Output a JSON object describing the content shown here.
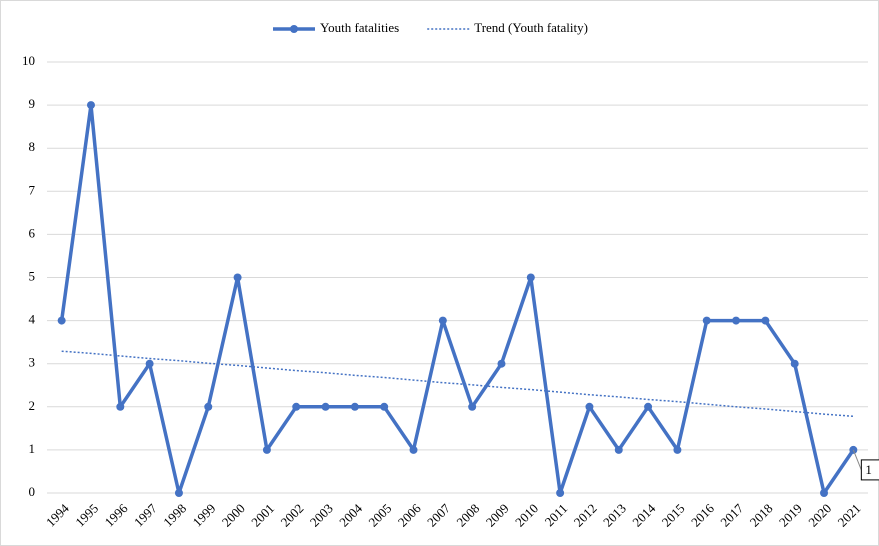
{
  "chart_data": {
    "type": "line",
    "categories": [
      "1994",
      "1995",
      "1996",
      "1997",
      "1998",
      "1999",
      "2000",
      "2001",
      "2002",
      "2003",
      "2004",
      "2005",
      "2006",
      "2007",
      "2008",
      "2009",
      "2010",
      "2011",
      "2012",
      "2013",
      "2014",
      "2015",
      "2016",
      "2017",
      "2018",
      "2019",
      "2020",
      "2021"
    ],
    "series": [
      {
        "name": "Youth fatalities",
        "color": "#4472c4",
        "style": "solid",
        "markers": true,
        "values": [
          4,
          9,
          2,
          3,
          0,
          2,
          5,
          1,
          2,
          2,
          2,
          2,
          1,
          4,
          2,
          3,
          5,
          0,
          2,
          1,
          2,
          1,
          4,
          4,
          4,
          3,
          0,
          1
        ]
      },
      {
        "name": "Trend (Youth fatality)",
        "color": "#4472c4",
        "style": "dotted",
        "markers": false,
        "values": [
          3.29,
          3.24,
          3.18,
          3.12,
          3.07,
          3.01,
          2.96,
          2.9,
          2.84,
          2.79,
          2.73,
          2.68,
          2.62,
          2.56,
          2.51,
          2.45,
          2.4,
          2.34,
          2.28,
          2.23,
          2.17,
          2.12,
          2.06,
          2.0,
          1.95,
          1.89,
          1.83,
          1.78
        ]
      }
    ],
    "data_label_index": 27,
    "ylim": [
      0,
      10
    ],
    "yticks": [
      0,
      1,
      2,
      3,
      4,
      5,
      6,
      7,
      8,
      9,
      10
    ],
    "grid": true,
    "legend": "top"
  }
}
